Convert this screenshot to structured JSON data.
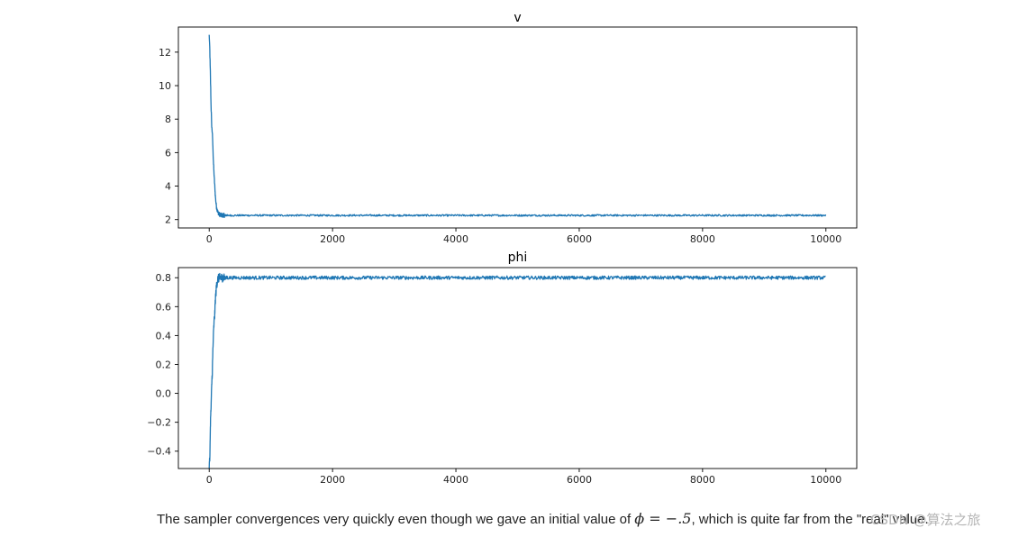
{
  "colors": {
    "series": "#1f77b4",
    "axes": "#000000",
    "text": "#222222",
    "watermark": "#b5b5b5"
  },
  "chart_data": [
    {
      "type": "line",
      "title": "v",
      "xlim": [
        0,
        10000
      ],
      "ylim": [
        1.5,
        13.5
      ],
      "xticks": [
        0,
        2000,
        4000,
        6000,
        8000,
        10000
      ],
      "yticks": [
        2,
        4,
        6,
        8,
        10,
        12
      ],
      "xtick_labels": [
        "0",
        "2000",
        "4000",
        "6000",
        "8000",
        "10000"
      ],
      "ytick_labels": [
        "2",
        "4",
        "6",
        "8",
        "10",
        "12"
      ],
      "grid": false,
      "series": [
        {
          "key_points": {
            "x": [
              0,
              10,
              20,
              30,
              40,
              50,
              60,
              70,
              80,
              90,
              100,
              110,
              120,
              140,
              160,
              180,
              200,
              300,
              500,
              1000,
              2000,
              4000,
              6000,
              8000,
              10000
            ],
            "y": [
              13.0,
              12.1,
              10.5,
              8.8,
              7.6,
              7.2,
              6.3,
              5.3,
              4.6,
              4.0,
              3.4,
              3.0,
              2.7,
              2.45,
              2.32,
              2.28,
              2.26,
              2.25,
              2.25,
              2.25,
              2.25,
              2.25,
              2.25,
              2.25,
              2.25
            ]
          },
          "noise_amplitude": 0.05
        }
      ]
    },
    {
      "type": "line",
      "title": "phi",
      "xlim": [
        0,
        10000
      ],
      "ylim": [
        -0.52,
        0.87
      ],
      "xticks": [
        0,
        2000,
        4000,
        6000,
        8000,
        10000
      ],
      "yticks": [
        -0.4,
        -0.2,
        0.0,
        0.2,
        0.4,
        0.6,
        0.8
      ],
      "xtick_labels": [
        "0",
        "2000",
        "4000",
        "6000",
        "8000",
        "10000"
      ],
      "ytick_labels": [
        "−0.4",
        "−0.2",
        "0.0",
        "0.2",
        "0.4",
        "0.6",
        "0.8"
      ],
      "grid": false,
      "series": [
        {
          "key_points": {
            "x": [
              0,
              10,
              20,
              30,
              40,
              50,
              60,
              70,
              80,
              90,
              100,
              120,
              140,
              160,
              180,
              200,
              300,
              1000,
              2000,
              4000,
              6000,
              8000,
              10000
            ],
            "y": [
              -0.5,
              -0.45,
              -0.2,
              -0.1,
              0.05,
              0.15,
              0.3,
              0.42,
              0.5,
              0.55,
              0.65,
              0.75,
              0.79,
              0.8,
              0.8,
              0.8,
              0.8,
              0.8,
              0.8,
              0.8,
              0.8,
              0.8,
              0.8
            ]
          },
          "noise_amplitude": 0.012
        }
      ]
    }
  ],
  "caption": {
    "text_before": "The sampler convergences very quickly even though we gave an initial value of ",
    "math": "ϕ = −.5",
    "text_after": ", which is quite far from the \"real\" value."
  },
  "watermark": "CSDN @算法之旅"
}
